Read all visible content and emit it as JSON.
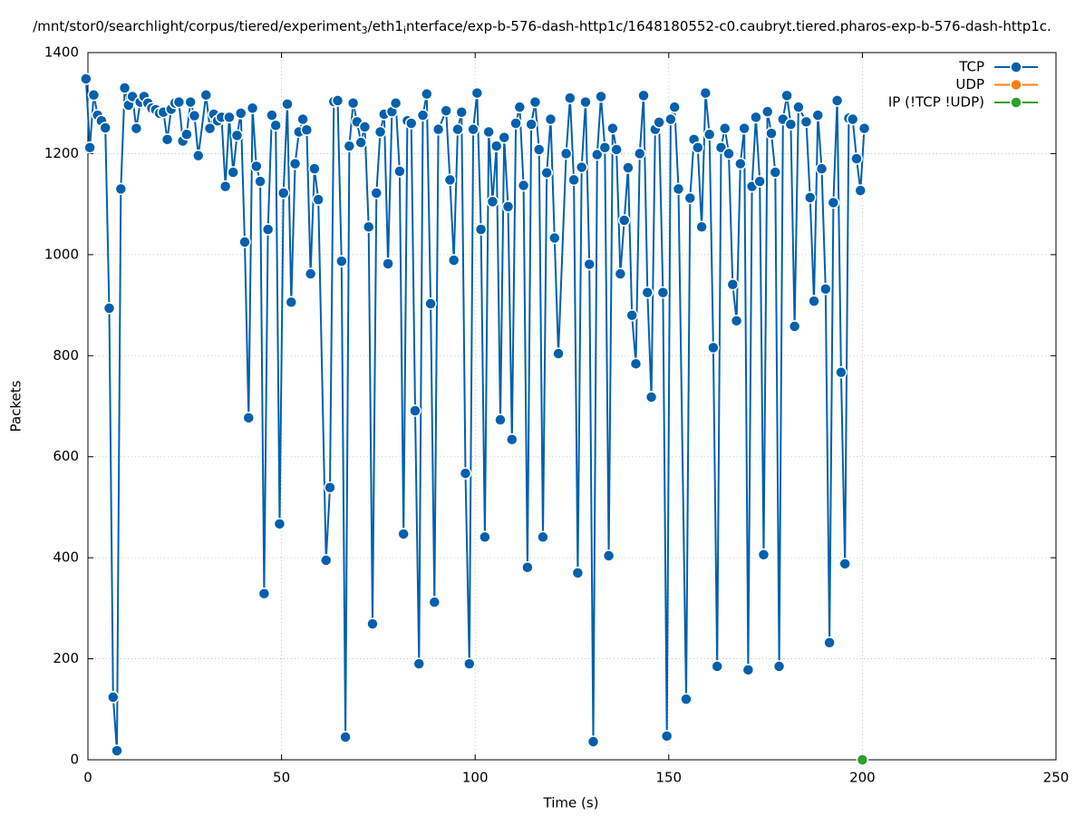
{
  "chart_data": {
    "type": "line",
    "title_parts": [
      "/mnt/stor0/searchlight/corpus/tiered/experiment",
      "3",
      "/eth1",
      "i",
      "nterface/exp-b-576-dash-http1c/1648180552-c0.caubryt.tiered.pharos-exp-b-576-dash-http1c."
    ],
    "xlabel": "Time (s)",
    "ylabel": "Packets",
    "xlim": [
      0,
      250
    ],
    "xticks": [
      0,
      50,
      100,
      150,
      200,
      250
    ],
    "ylim": [
      0,
      1400
    ],
    "yticks": [
      0,
      200,
      400,
      600,
      800,
      1000,
      1200,
      1400
    ],
    "grid": true,
    "legend": "top-right",
    "series": [
      {
        "name": "TCP",
        "color": "#0060ad",
        "x": [
          -0.5,
          0.5,
          1.5,
          2.5,
          3.5,
          4.5,
          5.5,
          6.5,
          7.5,
          8.5,
          9.5,
          10.5,
          11.5,
          12.5,
          13.5,
          14.5,
          15.5,
          16.5,
          17.5,
          18.5,
          19.5,
          20.5,
          21.5,
          22.5,
          23.5,
          24.5,
          25.5,
          26.5,
          27.5,
          28.5,
          30.5,
          31.5,
          32.5,
          33.5,
          34.5,
          35.5,
          36.5,
          37.5,
          38.5,
          39.5,
          40.5,
          41.5,
          42.5,
          43.5,
          44.5,
          45.5,
          46.5,
          47.5,
          48.5,
          49.5,
          50.5,
          51.5,
          52.5,
          53.5,
          54.5,
          55.5,
          56.5,
          57.5,
          58.5,
          59.5,
          61.5,
          62.5,
          63.5,
          64.5,
          65.5,
          66.5,
          67.5,
          68.5,
          69.5,
          70.5,
          71.5,
          72.5,
          73.5,
          74.5,
          75.5,
          76.5,
          77.5,
          78.5,
          79.5,
          80.5,
          81.5,
          82.5,
          83.5,
          84.5,
          85.5,
          86.5,
          87.5,
          88.5,
          89.5,
          90.5,
          92.5,
          93.5,
          94.5,
          95.5,
          96.5,
          97.5,
          98.5,
          99.5,
          100.5,
          101.5,
          102.5,
          103.5,
          104.5,
          105.5,
          106.5,
          107.5,
          108.5,
          109.5,
          110.5,
          111.5,
          112.5,
          113.5,
          114.5,
          115.5,
          116.5,
          117.5,
          118.5,
          119.5,
          120.5,
          121.5,
          123.5,
          124.5,
          125.5,
          126.5,
          127.5,
          128.5,
          129.5,
          130.5,
          131.5,
          132.5,
          133.5,
          134.5,
          135.5,
          136.5,
          137.5,
          138.5,
          139.5,
          140.5,
          141.5,
          142.5,
          143.5,
          144.5,
          145.5,
          146.5,
          147.5,
          148.5,
          149.5,
          150.5,
          151.5,
          152.5,
          154.5,
          155.5,
          156.5,
          157.5,
          158.5,
          159.5,
          160.5,
          161.5,
          162.5,
          163.5,
          164.5,
          165.5,
          166.5,
          167.5,
          168.5,
          169.5,
          170.5,
          171.5,
          172.5,
          173.5,
          174.5,
          175.5,
          176.5,
          177.5,
          178.5,
          179.5,
          180.5,
          181.5,
          182.5,
          183.5,
          185.5,
          186.5,
          187.5,
          188.5,
          189.5,
          190.5,
          191.5,
          192.5,
          193.5,
          194.5,
          195.5,
          196.5,
          197.5,
          198.5,
          199.5,
          200.5
        ],
        "values": [
          1348,
          1212,
          1316,
          1276,
          1265,
          1251,
          894,
          124,
          18,
          1130,
          1330,
          1296,
          1313,
          1250,
          1302,
          1313,
          1300,
          1290,
          1287,
          1280,
          1282,
          1228,
          1288,
          1300,
          1302,
          1225,
          1238,
          1302,
          1275,
          1196,
          1316,
          1250,
          1278,
          1265,
          1272,
          1135,
          1272,
          1163,
          1236,
          1280,
          1025,
          677,
          1290,
          1175,
          1145,
          329,
          1050,
          1276,
          1256,
          467,
          1122,
          1298,
          906,
          1180,
          1243,
          1268,
          1247,
          962,
          1170,
          1109,
          395,
          539,
          1303,
          1305,
          987,
          45,
          1215,
          1300,
          1263,
          1222,
          1253,
          1055,
          269,
          1122,
          1243,
          1278,
          982,
          1283,
          1300,
          1165,
          447,
          1265,
          1260,
          691,
          190,
          1276,
          1318,
          903,
          312,
          1248,
          1285,
          1148,
          989,
          1248,
          1282,
          567,
          190,
          1248,
          1320,
          1050,
          441,
          1243,
          1105,
          1215,
          673,
          1232,
          1095,
          634,
          1260,
          1292,
          1137,
          381,
          1258,
          1302,
          1208,
          441,
          1162,
          1268,
          1033,
          804,
          1200,
          1310,
          1148,
          370,
          1173,
          1302,
          981,
          36,
          1198,
          1313,
          1212,
          404,
          1250,
          1208,
          962,
          1068,
          1172,
          880,
          784,
          1200,
          1315,
          925,
          718,
          1248,
          1262,
          925,
          47,
          1268,
          1292,
          1130,
          120,
          1112,
          1228,
          1212,
          1055,
          1320,
          1238,
          816,
          185,
          1212,
          1250,
          1200,
          941,
          869,
          1180,
          1250,
          178,
          1135,
          1272,
          1145,
          406,
          1283,
          1240,
          1163,
          185,
          1268,
          1315,
          1258,
          858,
          1292,
          1263,
          1113,
          908,
          1276,
          1170,
          932,
          232,
          1103,
          1305,
          767,
          388,
          1270,
          1268,
          1190,
          1127,
          1250
        ]
      },
      {
        "name": "UDP",
        "color": "#ff7f0e",
        "x": [],
        "values": []
      },
      {
        "name": "IP (!TCP  !UDP)",
        "color": "#2ca02c",
        "x": [
          200
        ],
        "values": [
          0
        ]
      }
    ]
  }
}
